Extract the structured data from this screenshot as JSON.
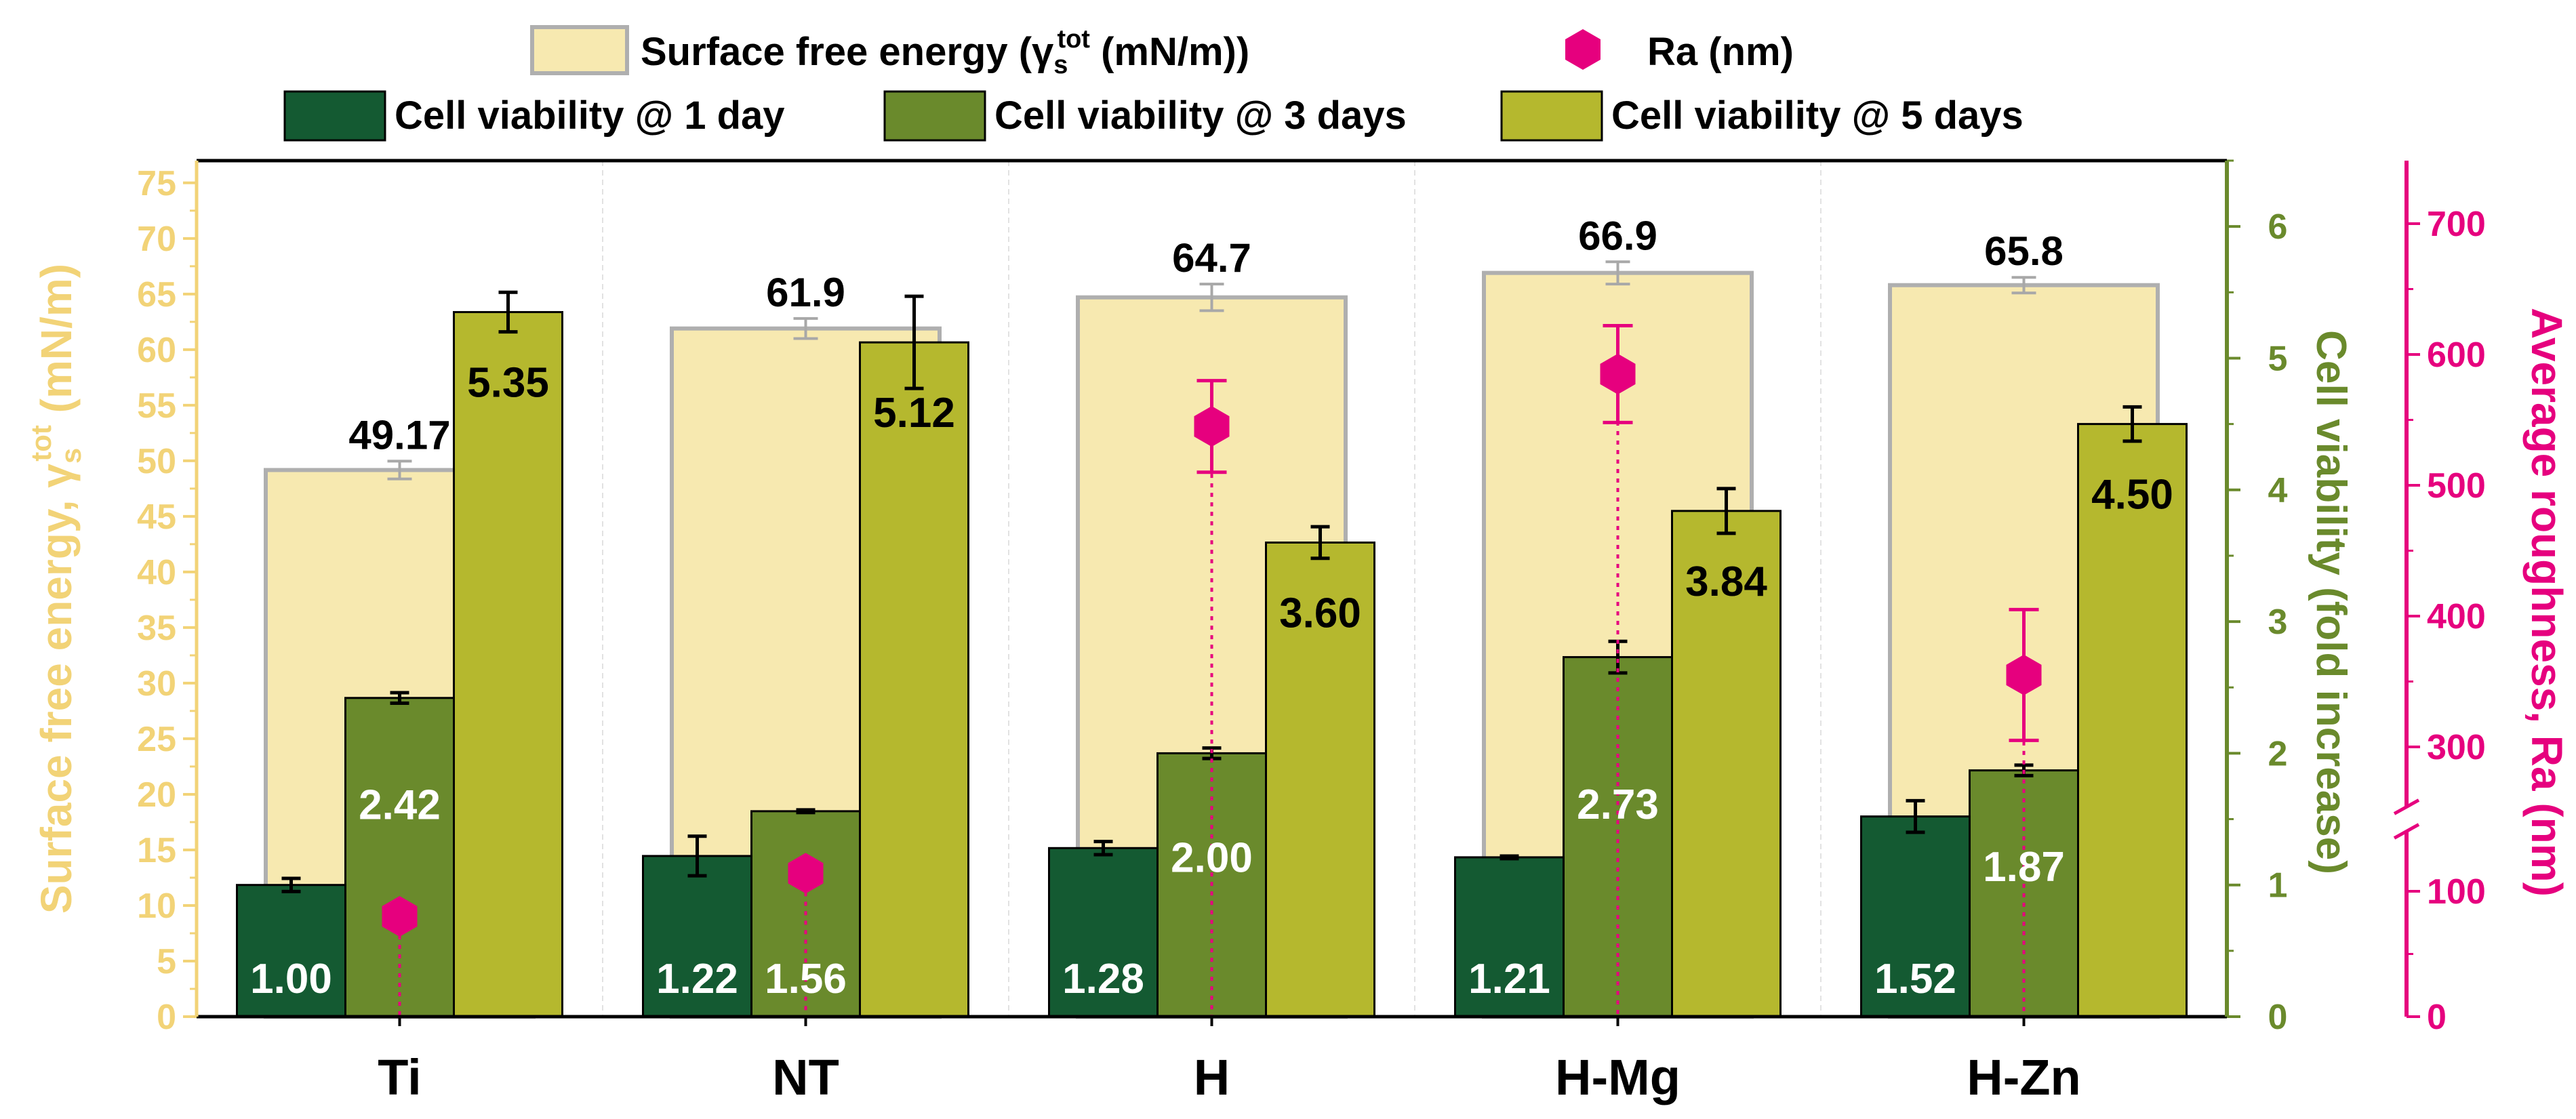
{
  "chart_data": {
    "type": "bar",
    "categories": [
      "Ti",
      "NT",
      "H",
      "H-Mg",
      "H-Zn"
    ],
    "axes": {
      "left": {
        "label_main": "Surface free energy, γ",
        "label_sub": "s",
        "label_sup": "tot",
        "label_unit": " (mN/m)",
        "ylim": [
          0,
          77
        ],
        "tick_values": [
          0,
          5,
          10,
          15,
          20,
          25,
          30,
          35,
          40,
          45,
          50,
          55,
          60,
          65,
          70,
          75
        ],
        "color": "#F2D377"
      },
      "right1": {
        "label": "Cell viability (fold increase)",
        "ylim": [
          0,
          6.5
        ],
        "tick_values": [
          0,
          1,
          2,
          3,
          4,
          5,
          6
        ],
        "color": "#6A8A2C"
      },
      "right2": {
        "label": "Average roughness, Ra (nm)",
        "ticks": [
          {
            "label": "0",
            "value": 0
          },
          {
            "label": "100",
            "value": 100
          },
          {
            "label": "300",
            "value": 300
          },
          {
            "label": "400",
            "value": 400
          },
          {
            "label": "500",
            "value": 500
          },
          {
            "label": "600",
            "value": 600
          },
          {
            "label": "700",
            "value": 700
          }
        ],
        "color": "#E6007E"
      }
    },
    "legend": {
      "row1": [
        {
          "key": "sfe",
          "label_main": "Surface free energy (γ",
          "label_sub": "s",
          "label_sup": "tot",
          "label_tail": " (mN/m))"
        },
        {
          "key": "ra",
          "label": "Ra (nm)"
        }
      ],
      "row2": [
        {
          "key": "cv1",
          "label": "Cell viability @ 1 day"
        },
        {
          "key": "cv3",
          "label": "Cell viability @ 3 days"
        },
        {
          "key": "cv5",
          "label": "Cell viability @ 5 days"
        }
      ]
    },
    "series": [
      {
        "key": "sfe",
        "axis": "left",
        "color": "#F7E9B0",
        "edge": "#AFAFAF",
        "values": [
          49.17,
          61.9,
          64.7,
          66.9,
          65.8
        ],
        "errors": [
          0.8,
          0.9,
          1.2,
          1.0,
          0.7
        ],
        "labels": [
          "49.17",
          "61.9",
          "64.7",
          "66.9",
          "65.8"
        ]
      },
      {
        "key": "cv1",
        "axis": "right1",
        "color": "#145A32",
        "values": [
          1.0,
          1.22,
          1.28,
          1.21,
          1.52
        ],
        "errors": [
          0.05,
          0.15,
          0.05,
          0.01,
          0.12
        ],
        "labels": [
          "1.00",
          "1.22",
          "1.28",
          "1.21",
          "1.52"
        ]
      },
      {
        "key": "cv3",
        "axis": "right1",
        "color": "#6A8A2C",
        "values": [
          2.42,
          1.56,
          2.0,
          2.73,
          1.87
        ],
        "errors": [
          0.04,
          0.01,
          0.04,
          0.12,
          0.04
        ],
        "labels": [
          "2.42",
          "1.56",
          "2.00",
          "2.73",
          "1.87"
        ]
      },
      {
        "key": "cv5",
        "axis": "right1",
        "color": "#B5B82E",
        "values": [
          5.35,
          5.12,
          3.6,
          3.84,
          4.5
        ],
        "errors": [
          0.15,
          0.35,
          0.12,
          0.17,
          0.13
        ],
        "labels": [
          "5.35",
          "5.12",
          "3.60",
          "3.84",
          "4.50"
        ]
      }
    ],
    "roughness": {
      "key": "ra",
      "axis": "right2",
      "color": "#E6007E",
      "values": [
        80,
        125,
        545,
        585,
        355
      ],
      "errors": [
        0,
        0,
        35,
        37,
        50
      ]
    }
  }
}
